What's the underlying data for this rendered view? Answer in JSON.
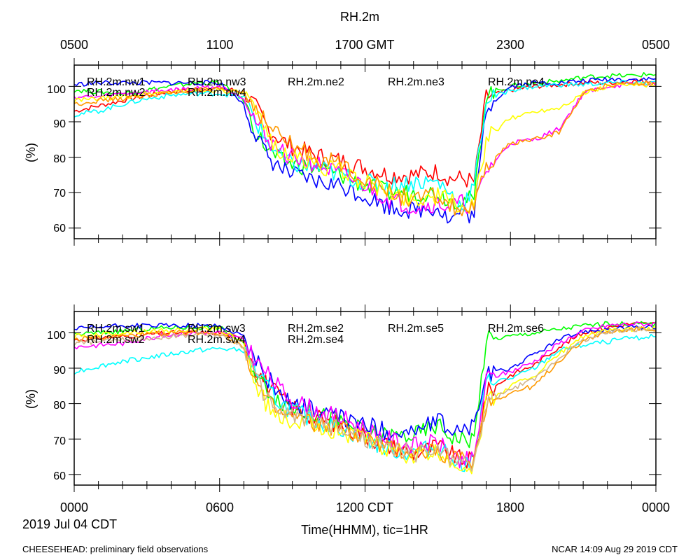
{
  "chart_data": [
    {
      "type": "line",
      "title": "RH.2m",
      "ylabel": "(%)",
      "ylim": [
        57,
        106
      ],
      "yticks": [
        60,
        70,
        80,
        90,
        100
      ],
      "ytick_labels": [
        "60",
        "70",
        "80",
        "90",
        "100"
      ],
      "xlim": [
        0,
        24
      ],
      "top_xticks": [
        0,
        6,
        12,
        18,
        24
      ],
      "top_xtick_labels": [
        "0500",
        "1100",
        "1700 GMT",
        "2300",
        "0500"
      ],
      "x_hours": [
        0,
        1,
        2,
        3,
        4,
        5,
        6,
        7,
        7.5,
        8,
        8.5,
        9,
        10,
        11,
        12,
        13,
        14,
        15,
        15.5,
        16,
        16.5,
        17,
        18,
        19,
        20,
        21,
        22,
        23,
        24
      ],
      "series": [
        {
          "name": "RH.2m.nw1",
          "color": "#ff0000",
          "values": [
            93,
            94.5,
            96,
            97.5,
            98.5,
            99,
            99.5,
            98.5,
            94,
            88,
            85,
            83,
            80.5,
            79,
            77,
            75,
            75,
            76,
            74,
            74,
            73,
            97,
            99,
            100,
            100.5,
            101,
            101,
            101.5,
            101.5
          ]
        },
        {
          "name": "RH.2m.nw2",
          "color": "#00ff00",
          "values": [
            99,
            98.5,
            98,
            99,
            100,
            101,
            101,
            96,
            87,
            82,
            79,
            78,
            77,
            75,
            72,
            70,
            70,
            70,
            68,
            68,
            68,
            98,
            100,
            101,
            101.5,
            102.5,
            103,
            103,
            103.5
          ]
        },
        {
          "name": "RH.2m.nw3",
          "color": "#0000ff",
          "values": [
            100.5,
            101,
            101,
            101,
            101,
            101,
            101,
            95,
            86,
            80,
            77,
            75,
            73,
            72,
            69,
            66,
            65,
            66,
            62,
            65,
            63,
            94,
            100,
            101,
            101,
            101.5,
            102,
            102,
            102
          ]
        },
        {
          "name": "RH.2m.nw4",
          "color": "#00ffff",
          "values": [
            92,
            93,
            95,
            96.5,
            97.5,
            98,
            98,
            97,
            90,
            84,
            80,
            78,
            77,
            75,
            73,
            72,
            73,
            73,
            70,
            66,
            72,
            96,
            99,
            100,
            100.5,
            100.5,
            101,
            101,
            101
          ]
        },
        {
          "name": "RH.2m.ne2",
          "color": "#ff00ff",
          "values": [
            97,
            97,
            98,
            98.5,
            99,
            99.5,
            100,
            97,
            90,
            85,
            82,
            80,
            78,
            75,
            72,
            68,
            66,
            67,
            66,
            67,
            66,
            76,
            84,
            85,
            88,
            98,
            100,
            100.5,
            100.5
          ]
        },
        {
          "name": "RH.2m.ne3",
          "color": "#ffff00",
          "values": [
            96,
            96.5,
            97,
            98,
            98.5,
            99,
            99,
            98,
            92,
            86,
            82,
            80,
            78,
            76,
            73,
            70,
            68,
            69,
            68,
            66,
            66,
            85,
            91,
            93,
            94,
            98,
            100,
            100.5,
            100.5
          ]
        },
        {
          "name": "RH.2m.ne4",
          "color": "#ff9900",
          "values": [
            95,
            96,
            96.5,
            97.5,
            98,
            99,
            99,
            98.5,
            94,
            89,
            86,
            83,
            80,
            78,
            74,
            70,
            68,
            69,
            66,
            65,
            65,
            77,
            84,
            85,
            87,
            98,
            100.5,
            101,
            101
          ]
        }
      ],
      "legend": [
        {
          "label": "RH.2m.nw1",
          "color": "#ff0000"
        },
        {
          "label": "RH.2m.nw2",
          "color": "#00ff00"
        },
        {
          "label": "RH.2m.nw3",
          "color": "#0000ff"
        },
        {
          "label": "RH.2m.nw4",
          "color": "#00ffff"
        },
        {
          "label": "RH.2m.ne2",
          "color": "#ff00ff"
        },
        {
          "label": "RH.2m.ne3",
          "color": "#ffff00"
        },
        {
          "label": "RH.2m.ne4",
          "color": "#ff9900"
        }
      ]
    },
    {
      "type": "line",
      "title": "",
      "ylabel": "(%)",
      "ylim": [
        57,
        106
      ],
      "yticks": [
        60,
        70,
        80,
        90,
        100
      ],
      "ytick_labels": [
        "60",
        "70",
        "80",
        "90",
        "100"
      ],
      "xlim": [
        0,
        24
      ],
      "bottom_xticks": [
        0,
        6,
        12,
        18,
        24
      ],
      "bottom_xtick_labels": [
        "0000",
        "0600",
        "1200 CDT",
        "1800",
        "0000"
      ],
      "xlabel": "Time(HHMM), tic=1HR",
      "x_hours": [
        0,
        1,
        2,
        3,
        4,
        5,
        6,
        7,
        7.5,
        8,
        8.5,
        9,
        10,
        11,
        12,
        13,
        14,
        15,
        15.5,
        16,
        16.5,
        17,
        18,
        19,
        20,
        21,
        22,
        23,
        24
      ],
      "series": [
        {
          "name": "RH.2m.sw1",
          "color": "#ff0000",
          "values": [
            98,
            98.5,
            99,
            99.5,
            100,
            100,
            100,
            98,
            90,
            85,
            82,
            79,
            76,
            74,
            71,
            68,
            66,
            68,
            66,
            64,
            64,
            83,
            88,
            91,
            96,
            100,
            101.5,
            102.5,
            102.5
          ]
        },
        {
          "name": "RH.2m.sw2",
          "color": "#00ff00",
          "values": [
            99.5,
            100,
            100.5,
            101,
            101.5,
            101.5,
            101.5,
            97,
            88,
            84,
            81,
            79,
            77,
            75,
            72,
            71,
            71,
            74,
            71,
            70,
            70,
            98,
            99,
            100,
            101,
            102,
            102.5,
            102.5,
            102.5
          ]
        },
        {
          "name": "RH.2m.sw3",
          "color": "#0000ff",
          "values": [
            101,
            101.5,
            102,
            102,
            102,
            102,
            102,
            99,
            92,
            87,
            83,
            80,
            78,
            76,
            74,
            72,
            72,
            75,
            73,
            72,
            74,
            88,
            90,
            94,
            98,
            100.5,
            101,
            101.5,
            101.5
          ]
        },
        {
          "name": "RH.2m.sw4",
          "color": "#00ffff",
          "values": [
            89,
            90.5,
            92,
            93,
            94,
            95,
            95.5,
            95,
            89,
            84,
            80,
            78,
            75,
            73,
            70,
            67,
            66,
            68,
            66,
            63,
            64,
            86,
            87,
            90,
            95,
            96.5,
            97.5,
            98.5,
            99
          ]
        },
        {
          "name": "RH.2m.se2",
          "color": "#ff00ff",
          "values": [
            96,
            96.5,
            97,
            98.5,
            99.5,
            100,
            100,
            98,
            92,
            88,
            84,
            81,
            78,
            76,
            73,
            70,
            68,
            69,
            66,
            64,
            64,
            87,
            89,
            92,
            97,
            100.5,
            102,
            102.5,
            102.5
          ]
        },
        {
          "name": "RH.2m.se4",
          "color": "#ffff00",
          "values": [
            99,
            99.5,
            100,
            100.5,
            100.5,
            101,
            101,
            97,
            85,
            79,
            76,
            75,
            74,
            72,
            70,
            67,
            65,
            66,
            64,
            62,
            63,
            80,
            85,
            88,
            94,
            99,
            100.5,
            101,
            101
          ]
        },
        {
          "name": "RH.2m.se5",
          "color": "#ff9900",
          "values": [
            98,
            98.5,
            99,
            99.5,
            100,
            100,
            100,
            96,
            86,
            80,
            77,
            76,
            74,
            73,
            70,
            67,
            66,
            67,
            65,
            64,
            64,
            80,
            83,
            85,
            92,
            98,
            100,
            101,
            101
          ]
        },
        {
          "name": "RH.2m.se6",
          "color": "#d2b48c",
          "values": [
            97,
            97.5,
            98,
            98.5,
            99,
            99.5,
            99.5,
            96,
            87,
            81,
            78,
            77,
            75,
            73,
            70,
            67,
            66,
            67,
            65,
            63,
            63,
            80,
            84,
            87,
            93,
            98,
            100,
            101,
            101
          ]
        }
      ],
      "legend": [
        {
          "label": "RH.2m.sw1",
          "color": "#ff0000"
        },
        {
          "label": "RH.2m.sw2",
          "color": "#00ff00"
        },
        {
          "label": "RH.2m.sw3",
          "color": "#0000ff"
        },
        {
          "label": "RH.2m.sw4",
          "color": "#00ffff"
        },
        {
          "label": "RH.2m.se2",
          "color": "#ff00ff"
        },
        {
          "label": "RH.2m.se4",
          "color": "#ffff00"
        },
        {
          "label": "RH.2m.se5",
          "color": "#ff9900"
        },
        {
          "label": "RH.2m.se6",
          "color": "#d2b48c"
        }
      ]
    }
  ],
  "footer": {
    "date": "2019 Jul 04 CDT",
    "left": "CHEESEHEAD: preliminary field observations",
    "right": "NCAR 14:09 Aug 29 2019 CDT"
  }
}
